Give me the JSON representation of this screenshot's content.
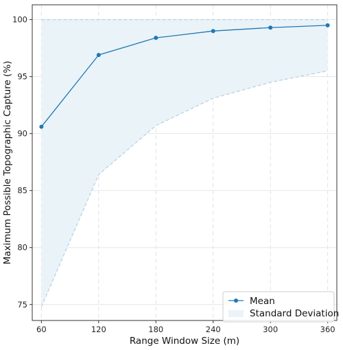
{
  "chart_data": {
    "type": "line",
    "x": [
      60,
      120,
      180,
      240,
      300,
      360
    ],
    "xlabel": "Range Window Size (m)",
    "ylabel": "Maximum Possible Topographic Capture (%)",
    "xticks": [
      "60",
      "120",
      "180",
      "240",
      "300",
      "360"
    ],
    "yticks": [
      "75",
      "80",
      "85",
      "90",
      "95",
      "100"
    ],
    "xlim": [
      50.4,
      369.6
    ],
    "ylim": [
      73.6,
      101.3
    ],
    "grid": true,
    "legend_position": "lower-right",
    "series": [
      {
        "name": "Mean",
        "values": [
          90.6,
          96.9,
          98.4,
          99.0,
          99.3,
          99.5
        ],
        "color": "#1f77b4",
        "marker": "circle"
      }
    ],
    "band": {
      "name": "Standard Deviation",
      "lower": [
        74.8,
        86.4,
        90.7,
        93.1,
        94.5,
        95.5
      ],
      "upper": [
        100.0,
        100.0,
        100.0,
        100.0,
        100.0,
        100.0
      ],
      "fill_color": "#eaf3f8",
      "edge_color": "#a9c9df"
    }
  }
}
